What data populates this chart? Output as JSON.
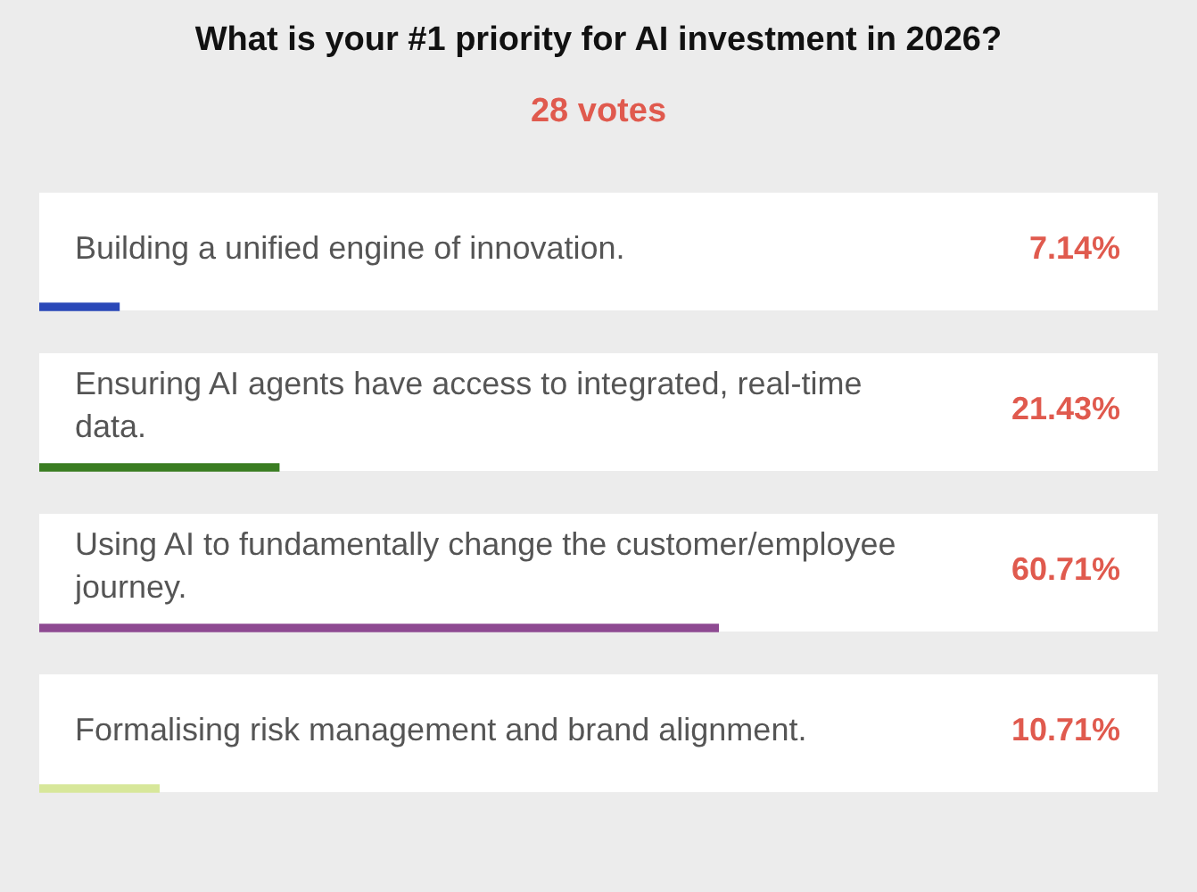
{
  "chart_data": {
    "type": "bar",
    "orientation": "horizontal",
    "title": "What is your #1 priority for AI investment in 2026?",
    "subtitle": "28 votes",
    "categories": [
      "Building a unified engine of innovation.",
      "Ensuring AI agents have access to integrated, real-time data.",
      "Using AI to fundamentally change the customer/employee journey.",
      "Formalising risk management and brand alignment."
    ],
    "values": [
      7.14,
      21.43,
      60.71,
      10.71
    ],
    "value_labels": [
      "7.14%",
      "21.43%",
      "60.71%",
      "10.71%"
    ],
    "colors": [
      "#2a48b8",
      "#3a7d22",
      "#8e4a92",
      "#d7e79a"
    ],
    "legend": false
  }
}
